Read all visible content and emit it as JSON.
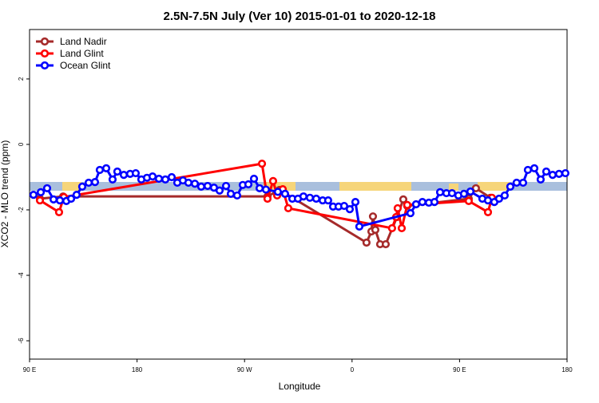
{
  "chart_data": {
    "type": "line",
    "title": "2.5N-7.5N July (Ver 10)   2015-01-01 to 2020-12-18",
    "x_label": "Longitude",
    "y_label": "XCO2 - MLO trend (ppm)",
    "xlim": [
      90,
      540
    ],
    "ylim": [
      -6.56,
      3.51
    ],
    "xticks": [
      {
        "value": 90,
        "label": "90 E"
      },
      {
        "value": 180,
        "label": "180"
      },
      {
        "value": 270,
        "label": "90 W"
      },
      {
        "value": 360,
        "label": "0"
      },
      {
        "value": 450,
        "label": "90 E"
      },
      {
        "value": 540,
        "label": "180"
      }
    ],
    "yticks": [
      2,
      0,
      -2,
      -4,
      -6
    ],
    "legend": "top-left",
    "series": [
      {
        "name": "Land Nadir",
        "color": "#a52a2a",
        "x": [
          98.7,
          118.1,
          289.2,
          299.3,
          372.1,
          376.2,
          377.5,
          379.5,
          383.5,
          388.2,
          397.6,
          402.9,
          406.2,
          457.7,
          463.7,
          475.8
        ],
        "values": [
          -1.66,
          -1.59,
          -1.59,
          -1.39,
          -3.0,
          -2.66,
          -2.2,
          -2.61,
          -3.05,
          -3.05,
          -2.22,
          -1.68,
          -1.88,
          -1.66,
          -1.34,
          -1.63
        ]
      },
      {
        "name": "Land Glint",
        "color": "#ff0000",
        "x": [
          98.7,
          114.7,
          118.7,
          284.6,
          289.2,
          293.9,
          297.3,
          302,
          306.6,
          393.5,
          396.9,
          398.2,
          401.6,
          406.2,
          457.7,
          473.8,
          477.1
        ],
        "values": [
          -1.71,
          -2.07,
          -1.61,
          -0.59,
          -1.66,
          -1.12,
          -1.56,
          -1.37,
          -1.95,
          -2.56,
          -2.22,
          -1.95,
          -2.56,
          -1.85,
          -1.73,
          -2.07,
          -1.63
        ]
      },
      {
        "name": "Ocean Glint",
        "color": "#0000ff",
        "x": [
          93.3,
          99.4,
          104.7,
          110.1,
          115.4,
          120.8,
          124.8,
          129.4,
          134.1,
          139.5,
          144.8,
          148.8,
          154.2,
          159.5,
          163.5,
          168.9,
          174.2,
          178.9,
          183.6,
          188.3,
          193,
          198.3,
          203.7,
          209,
          213.7,
          218.4,
          223,
          228.4,
          233.7,
          239.1,
          244.4,
          249.1,
          254.5,
          258.5,
          263.8,
          268.5,
          273.2,
          277.9,
          282.6,
          287.9,
          297.9,
          303.9,
          310,
          314.7,
          319.3,
          324.7,
          330,
          335.4,
          340,
          344.1,
          348.7,
          353.4,
          358.1,
          362.8,
          366.1,
          408.9,
          413.6,
          418.9,
          424.3,
          429,
          433.7,
          439,
          443.7,
          449,
          453.7,
          459.1,
          469.1,
          473.8,
          479.1,
          483.1,
          487.8,
          492.5,
          497.8,
          503.2,
          507.2,
          512.6,
          517.9,
          522.6,
          527.9,
          533.3,
          538.6
        ],
        "values": [
          -1.54,
          -1.46,
          -1.34,
          -1.68,
          -1.71,
          -1.73,
          -1.66,
          -1.54,
          -1.29,
          -1.17,
          -1.15,
          -0.78,
          -0.73,
          -1.07,
          -0.83,
          -0.93,
          -0.9,
          -0.88,
          -1.07,
          -1.02,
          -0.98,
          -1.05,
          -1.07,
          -1.0,
          -1.17,
          -1.1,
          -1.17,
          -1.2,
          -1.29,
          -1.27,
          -1.32,
          -1.41,
          -1.27,
          -1.51,
          -1.56,
          -1.24,
          -1.22,
          -1.05,
          -1.34,
          -1.38,
          -1.45,
          -1.51,
          -1.66,
          -1.66,
          -1.59,
          -1.63,
          -1.66,
          -1.71,
          -1.71,
          -1.9,
          -1.9,
          -1.88,
          -1.98,
          -1.76,
          -2.51,
          -2.1,
          -1.83,
          -1.76,
          -1.78,
          -1.76,
          -1.46,
          -1.49,
          -1.49,
          -1.56,
          -1.51,
          -1.44,
          -1.66,
          -1.71,
          -1.76,
          -1.66,
          -1.56,
          -1.29,
          -1.17,
          -1.17,
          -0.78,
          -0.73,
          -1.07,
          -0.83,
          -0.93,
          -0.9,
          -0.88
        ]
      }
    ]
  }
}
